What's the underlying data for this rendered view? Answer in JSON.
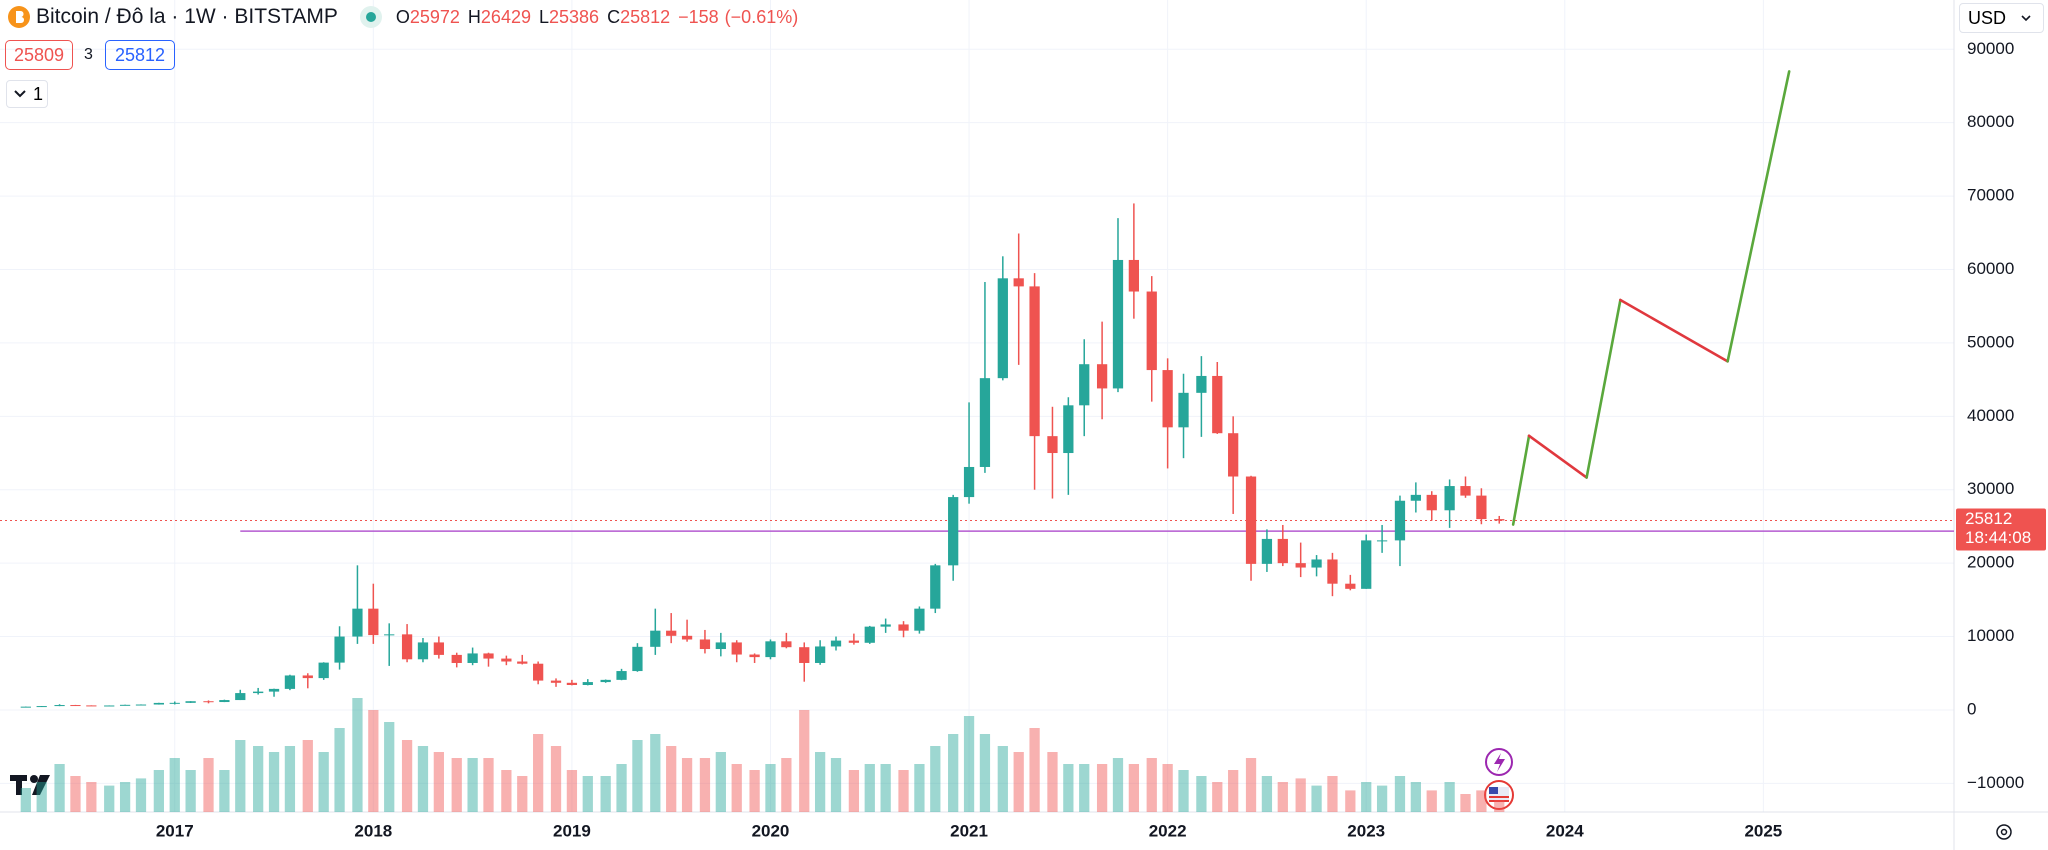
{
  "header": {
    "title": "Bitcoin / Đô la · 1W · BITSTAMP",
    "ohlc_labels": [
      "O",
      "H",
      "L",
      "C"
    ],
    "ohlc": [
      25972,
      26429,
      25386,
      25812
    ],
    "change": {
      "value": -158,
      "label": "−158"
    },
    "change_pct": {
      "value": -0.61,
      "label": "(−0.61%)"
    },
    "sell": 25809,
    "spread": 3,
    "buy": 25812,
    "indicator_count": 1,
    "currency": "USD"
  },
  "chart_data": {
    "type": "candlestick",
    "xlim": [
      2016.12,
      2025.96
    ],
    "xticks": [
      2017,
      2018,
      2019,
      2020,
      2021,
      2022,
      2023,
      2024,
      2025
    ],
    "ylim": [
      -13900,
      91400
    ],
    "yticks": [
      90000,
      80000,
      70000,
      60000,
      50000,
      40000,
      30000,
      20000,
      10000,
      0,
      {
        "value": -10000,
        "label": "−10000"
      }
    ],
    "grid": true,
    "up_color": "#26a69a",
    "down_color": "#ef5350",
    "candles": [
      [
        2016.25,
        420,
        470,
        410,
        450,
        20
      ],
      [
        2016.33,
        450,
        540,
        440,
        530,
        25
      ],
      [
        2016.42,
        530,
        780,
        520,
        670,
        40
      ],
      [
        2016.5,
        670,
        690,
        600,
        620,
        30
      ],
      [
        2016.58,
        620,
        630,
        540,
        575,
        25
      ],
      [
        2016.67,
        575,
        620,
        560,
        610,
        22
      ],
      [
        2016.75,
        610,
        720,
        600,
        700,
        25
      ],
      [
        2016.83,
        700,
        760,
        680,
        740,
        28
      ],
      [
        2016.92,
        740,
        980,
        730,
        960,
        35
      ],
      [
        2017,
        960,
        1150,
        750,
        970,
        45
      ],
      [
        2017.08,
        970,
        1200,
        950,
        1190,
        35
      ],
      [
        2017.17,
        1190,
        1300,
        900,
        1080,
        45
      ],
      [
        2017.25,
        1080,
        1400,
        1070,
        1350,
        35
      ],
      [
        2017.33,
        1350,
        2750,
        1350,
        2300,
        60
      ],
      [
        2017.42,
        2300,
        3000,
        2100,
        2500,
        55
      ],
      [
        2017.5,
        2500,
        2900,
        1800,
        2870,
        50
      ],
      [
        2017.58,
        2870,
        4800,
        2700,
        4700,
        55
      ],
      [
        2017.67,
        4700,
        5000,
        2950,
        4340,
        60
      ],
      [
        2017.75,
        4340,
        6500,
        4100,
        6450,
        50
      ],
      [
        2017.83,
        6450,
        11400,
        5500,
        10000,
        70
      ],
      [
        2017.92,
        10000,
        19700,
        9000,
        13800,
        95
      ],
      [
        2018,
        13800,
        17200,
        9000,
        10200,
        85
      ],
      [
        2018.08,
        10200,
        11800,
        6000,
        10300,
        75
      ],
      [
        2018.17,
        10300,
        11700,
        6500,
        6900,
        60
      ],
      [
        2018.25,
        6900,
        9800,
        6500,
        9200,
        55
      ],
      [
        2018.33,
        9200,
        10000,
        7000,
        7500,
        50
      ],
      [
        2018.42,
        7500,
        7800,
        5800,
        6400,
        45
      ],
      [
        2018.5,
        6400,
        8500,
        6100,
        7700,
        45
      ],
      [
        2018.58,
        7700,
        7800,
        5900,
        7000,
        45
      ],
      [
        2018.67,
        7000,
        7400,
        6100,
        6600,
        35
      ],
      [
        2018.75,
        6600,
        7500,
        6200,
        6300,
        30
      ],
      [
        2018.83,
        6300,
        6600,
        3500,
        4000,
        65
      ],
      [
        2018.92,
        4000,
        4300,
        3150,
        3700,
        55
      ],
      [
        2019,
        3700,
        4100,
        3350,
        3400,
        35
      ],
      [
        2019.08,
        3400,
        4200,
        3350,
        3800,
        30
      ],
      [
        2019.17,
        3800,
        4150,
        3700,
        4100,
        30
      ],
      [
        2019.25,
        4100,
        5600,
        4050,
        5300,
        40
      ],
      [
        2019.33,
        5300,
        9100,
        5200,
        8600,
        60
      ],
      [
        2019.42,
        8600,
        13800,
        7500,
        10800,
        65
      ],
      [
        2019.5,
        10800,
        13200,
        9100,
        10100,
        55
      ],
      [
        2019.58,
        10100,
        12300,
        9300,
        9600,
        45
      ],
      [
        2019.67,
        9600,
        10900,
        7700,
        8300,
        45
      ],
      [
        2019.75,
        8300,
        10500,
        7300,
        9200,
        50
      ],
      [
        2019.83,
        9200,
        9500,
        6500,
        7550,
        40
      ],
      [
        2019.92,
        7550,
        7700,
        6400,
        7200,
        35
      ],
      [
        2020,
        7200,
        9600,
        6900,
        9350,
        40
      ],
      [
        2020.08,
        9350,
        10500,
        8400,
        8550,
        45
      ],
      [
        2020.17,
        8550,
        9200,
        3850,
        6400,
        85
      ],
      [
        2020.25,
        6400,
        9500,
        6150,
        8650,
        50
      ],
      [
        2020.33,
        8650,
        10000,
        8100,
        9450,
        45
      ],
      [
        2020.42,
        9450,
        10400,
        8900,
        9150,
        35
      ],
      [
        2020.5,
        9150,
        11450,
        9000,
        11350,
        40
      ],
      [
        2020.58,
        11350,
        12450,
        10500,
        11650,
        40
      ],
      [
        2020.67,
        11650,
        12100,
        9900,
        10800,
        35
      ],
      [
        2020.75,
        10800,
        14100,
        10400,
        13800,
        40
      ],
      [
        2020.83,
        13800,
        19900,
        13200,
        19700,
        55
      ],
      [
        2020.92,
        19700,
        29300,
        17600,
        29000,
        65
      ],
      [
        2021,
        29000,
        41900,
        28100,
        33100,
        80
      ],
      [
        2021.08,
        33100,
        58300,
        32300,
        45200,
        65
      ],
      [
        2021.17,
        45200,
        61800,
        44900,
        58800,
        55
      ],
      [
        2021.25,
        58800,
        64900,
        47000,
        57700,
        50
      ],
      [
        2021.33,
        57700,
        59500,
        30000,
        37300,
        70
      ],
      [
        2021.42,
        37300,
        41300,
        28800,
        35000,
        50
      ],
      [
        2021.5,
        35000,
        42600,
        29300,
        41500,
        40
      ],
      [
        2021.58,
        41500,
        50500,
        37300,
        47100,
        40
      ],
      [
        2021.67,
        47100,
        52900,
        39600,
        43800,
        40
      ],
      [
        2021.75,
        43800,
        67000,
        43300,
        61300,
        45
      ],
      [
        2021.83,
        61300,
        69000,
        53300,
        57000,
        40
      ],
      [
        2021.92,
        57000,
        59100,
        42000,
        46300,
        45
      ],
      [
        2022,
        46300,
        47900,
        32900,
        38500,
        40
      ],
      [
        2022.08,
        38500,
        45800,
        34300,
        43200,
        35
      ],
      [
        2022.17,
        43200,
        48200,
        37200,
        45500,
        30
      ],
      [
        2022.25,
        45500,
        47400,
        37600,
        37700,
        25
      ],
      [
        2022.33,
        37700,
        40000,
        26700,
        31800,
        35
      ],
      [
        2022.42,
        31800,
        31900,
        17600,
        19900,
        45
      ],
      [
        2022.5,
        19900,
        24600,
        18800,
        23300,
        30
      ],
      [
        2022.58,
        23300,
        25200,
        19600,
        20000,
        25
      ],
      [
        2022.67,
        20000,
        22800,
        18100,
        19400,
        28
      ],
      [
        2022.75,
        19400,
        21100,
        18200,
        20500,
        22
      ],
      [
        2022.83,
        20500,
        21400,
        15500,
        17200,
        30
      ],
      [
        2022.92,
        17200,
        18400,
        16300,
        16500,
        18
      ],
      [
        2023,
        16500,
        23900,
        16500,
        23100,
        25
      ],
      [
        2023.08,
        23100,
        25200,
        21400,
        23100,
        22
      ],
      [
        2023.17,
        23100,
        29200,
        19600,
        28500,
        30
      ],
      [
        2023.25,
        28500,
        31000,
        26900,
        29300,
        25
      ],
      [
        2023.33,
        29300,
        29800,
        25800,
        27200,
        18
      ],
      [
        2023.42,
        27200,
        31400,
        24800,
        30500,
        25
      ],
      [
        2023.5,
        30500,
        31800,
        28900,
        29200,
        15
      ],
      [
        2023.58,
        29200,
        30200,
        25300,
        26000,
        18
      ],
      [
        2023.67,
        26000,
        26429,
        25386,
        25812,
        10
      ]
    ],
    "projection": {
      "x": [
        2023.74,
        2023.82,
        2024.11,
        2024.28,
        2024.82,
        2025.13
      ],
      "y": [
        25258,
        37350,
        31660,
        55850,
        47490,
        86980
      ],
      "up_color": "#5aa83c",
      "down_color": "#e0383e"
    },
    "support_line": {
      "value": 24370,
      "x_start": 2017.33,
      "color": "#b45ad0"
    },
    "last_price": 25812,
    "last_price_color": "#ef5350",
    "countdown": "18:44:08"
  }
}
